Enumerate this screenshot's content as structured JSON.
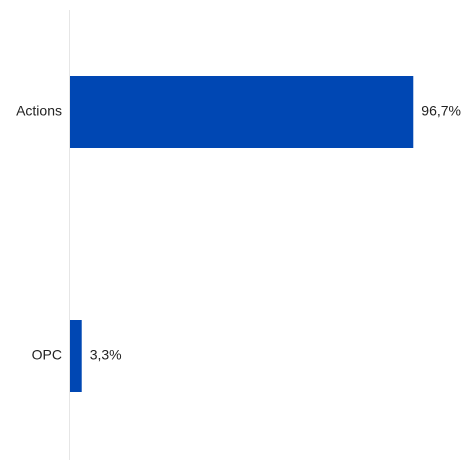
{
  "chart_data": {
    "type": "bar",
    "orientation": "horizontal",
    "categories": [
      "Actions",
      "OPC"
    ],
    "values": [
      96.7,
      3.3
    ],
    "value_labels": [
      "96,7%",
      "3,3%"
    ],
    "unit": "%",
    "xlim": [
      0,
      100
    ],
    "title": "",
    "xlabel": "",
    "ylabel": "",
    "grid": false,
    "legend": "none",
    "colors": {
      "bar": "#0047b3",
      "axis": "#e6e6e6",
      "text": "#222222"
    }
  }
}
